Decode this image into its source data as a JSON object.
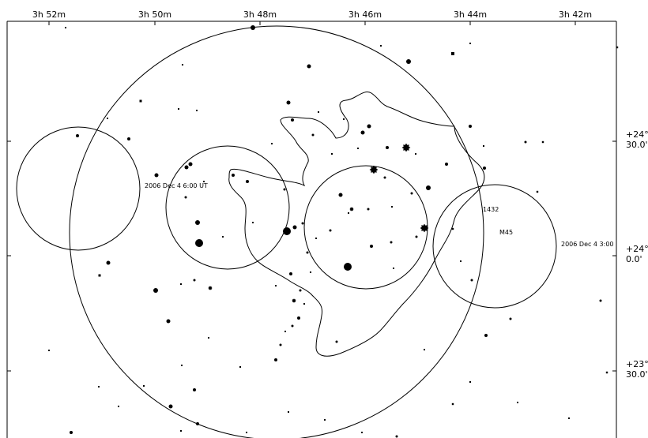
{
  "ra_ticks": [
    {
      "label": "3h 52m",
      "ra_min": 52
    },
    {
      "label": "3h 50m",
      "ra_min": 50
    },
    {
      "label": "3h 48m",
      "ra_min": 48
    },
    {
      "label": "3h 46m",
      "ra_min": 46
    },
    {
      "label": "3h 44m",
      "ra_min": 44
    },
    {
      "label": "3h 42m",
      "ra_min": 42
    }
  ],
  "dec_ticks": [
    {
      "line1": "+24°",
      "line2": "30.0'",
      "dec": 24.5
    },
    {
      "line1": "+24°",
      "line2": "0.0'",
      "dec": 24.0
    },
    {
      "line1": "+23°",
      "line2": "30.0'",
      "dec": 23.5
    }
  ],
  "annotations": {
    "time_label_a": "2006 Dec 4 6:00 UT",
    "time_label_b": "2006 Dec 4 3:00",
    "star_number": "1432",
    "cluster_name": "M45"
  }
}
